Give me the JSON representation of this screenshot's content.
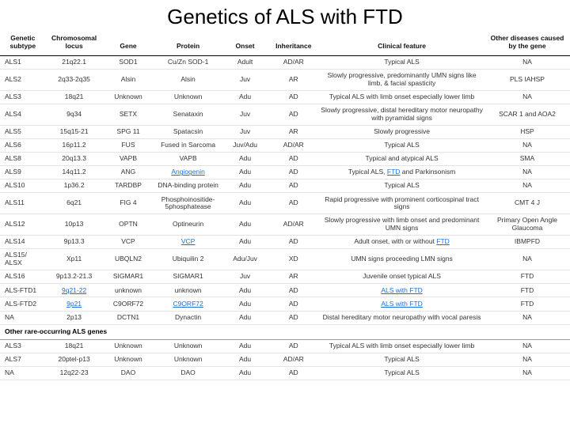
{
  "title": "Genetics of ALS with FTD",
  "columns": [
    "Genetic subtype",
    "Chromosomal locus",
    "Gene",
    "Protein",
    "Onset",
    "Inheritance",
    "Clinical feature",
    "Other diseases caused by the gene"
  ],
  "rows": [
    {
      "cells": [
        "ALS1",
        "21q22.1",
        "SOD1",
        "Cu/Zn SOD-1",
        "Adult",
        "AD/AR",
        "Typical ALS",
        "NA"
      ]
    },
    {
      "cells": [
        "ALS2",
        "2q33-2q35",
        "Alsin",
        "Alsin",
        "Juv",
        "AR",
        "Slowly progressive, predominantly UMN signs like limb, & facial spasticity",
        "PLS IAHSP"
      ]
    },
    {
      "cells": [
        "ALS3",
        "18q21",
        "Unknown",
        "Unknown",
        "Adu",
        "AD",
        "Typical ALS with limb onset especially lower limb",
        "NA"
      ]
    },
    {
      "cells": [
        "ALS4",
        "9q34",
        "SETX",
        "Senataxin",
        "Juv",
        "AD",
        "Slowly progressive, distal hereditary motor neuropathy with pyramidal signs",
        "SCAR 1 and AOA2"
      ]
    },
    {
      "cells": [
        "ALS5",
        "15q15-21",
        "SPG 11",
        "Spatacsin",
        "Juv",
        "AR",
        "Slowly progressive",
        "HSP"
      ]
    },
    {
      "cells": [
        "ALS6",
        "16p11.2",
        "FUS",
        "Fused in Sarcoma",
        "Juv/Adu",
        "AD/AR",
        "Typical ALS",
        "NA"
      ]
    },
    {
      "cells": [
        "ALS8",
        "20q13.3",
        "VAPB",
        "VAPB",
        "Adu",
        "AD",
        "Typical and atypical ALS",
        "SMA"
      ]
    },
    {
      "cells": [
        "ALS9",
        "14q11.2",
        "ANG",
        "Angiogenin",
        "Adu",
        "AD",
        "Typical ALS, FTD and Parkinsonism",
        "NA"
      ],
      "links": {
        "3": true
      },
      "ftd": {
        "6": "Typical ALS, |FTD| and Parkinsonism"
      }
    },
    {
      "cells": [
        "ALS10",
        "1p36.2",
        "TARDBP",
        "DNA-binding protein",
        "Adu",
        "AD",
        "Typical ALS",
        "NA"
      ]
    },
    {
      "cells": [
        "ALS11",
        "6q21",
        "FIG 4",
        "Phosphoinositide-5phosphatease",
        "Adu",
        "AD",
        "Rapid progressive with prominent corticospinal tract signs",
        "CMT 4 J"
      ]
    },
    {
      "cells": [
        "ALS12",
        "10p13",
        "OPTN",
        "Optineurin",
        "Adu",
        "AD/AR",
        "Slowly progressive with limb onset and predominant UMN signs",
        "Primary Open Angle Glaucoma"
      ]
    },
    {
      "cells": [
        "ALS14",
        "9p13.3",
        "VCP",
        "VCP",
        "Adu",
        "AD",
        "Adult onset, with or without FTD",
        "IBMPFD"
      ],
      "links": {
        "3": true
      },
      "ftd": {
        "6": "Adult onset, with or without |FTD|"
      }
    },
    {
      "cells": [
        "ALS15/ ALSX",
        "Xp11",
        "UBQLN2",
        "Ubiquilin 2",
        "Adu/Juv",
        "XD",
        "UMN signs proceeding LMN signs",
        "NA"
      ]
    },
    {
      "cells": [
        "ALS16",
        "9p13.2-21.3",
        "SIGMAR1",
        "SIGMAR1",
        "Juv",
        "AR",
        "Juvenile onset typical ALS",
        "FTD"
      ]
    },
    {
      "cells": [
        "ALS-FTD1",
        "9q21-22",
        "unknown",
        "unknown",
        "Adu",
        "AD",
        "ALS with FTD",
        "FTD"
      ],
      "links": {
        "1": true
      },
      "ftd": {
        "6": "|ALS with FTD|"
      }
    },
    {
      "cells": [
        "ALS-FTD2",
        "9p21",
        "C9ORF72",
        "C9ORF72",
        "Adu",
        "AD",
        "ALS with FTD",
        "FTD"
      ],
      "links": {
        "1": true,
        "3": true
      },
      "ftd": {
        "6": "|ALS with FTD|"
      }
    },
    {
      "cells": [
        "NA",
        "2p13",
        "DCTN1",
        "Dynactin",
        "Adu",
        "AD",
        "Distal hereditary motor neuropathy with vocal paresis",
        "NA"
      ]
    }
  ],
  "section2_label": "Other rare-occurring ALS genes",
  "rows2": [
    {
      "cells": [
        "ALS3",
        "18q21",
        "Unknown",
        "Unknown",
        "Adu",
        "AD",
        "Typical ALS with limb onset especially lower limb",
        "NA"
      ]
    },
    {
      "cells": [
        "ALS7",
        "20ptel-p13",
        "Unknown",
        "Unknown",
        "Adu",
        "AD/AR",
        "Typical ALS",
        "NA"
      ]
    },
    {
      "cells": [
        "NA",
        "12q22-23",
        "DAO",
        "DAO",
        "Adu",
        "AD",
        "Typical ALS",
        "NA"
      ]
    }
  ],
  "colors": {
    "link": "#1a6fd6",
    "text": "#333333",
    "header_border": "#000000",
    "row_border": "#e4e4e4",
    "background": "#ffffff"
  },
  "font_sizes": {
    "title_pt": 26,
    "header_pt": 8.5,
    "cell_pt": 8.5
  }
}
